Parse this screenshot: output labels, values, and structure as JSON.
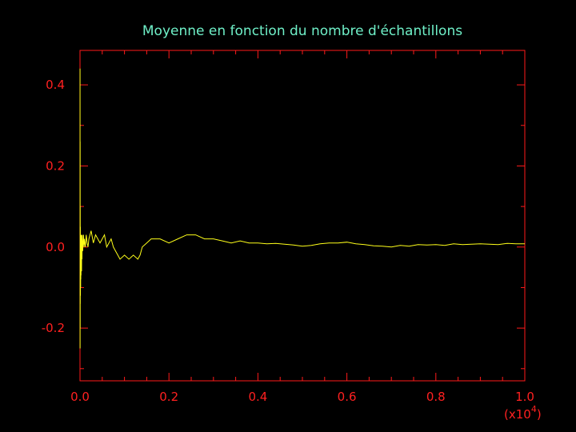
{
  "colors": {
    "background": "#000000",
    "axes": "#ff1a1a",
    "tick_labels": "#ff2020",
    "title": "#6ff0c8",
    "series": "#ffff1a"
  },
  "chart_data": {
    "type": "line",
    "title": "Moyenne en fonction du nombre d'échantillons",
    "xlabel": "",
    "ylabel": "",
    "x_multiplier_label": "(x10",
    "x_multiplier_exponent": "4",
    "x_multiplier_close": ")",
    "xlim": [
      0.0,
      1.0
    ],
    "ylim": [
      -0.33,
      0.485
    ],
    "x_tick_labels": [
      "0.0",
      "0.2",
      "0.4",
      "0.6",
      "0.8",
      "1.0"
    ],
    "y_tick_labels": [
      "-0.2",
      "0.0",
      "0.2",
      "0.4"
    ],
    "grid": false,
    "legend": "none",
    "series": [
      {
        "x": [
          0.0001,
          0.0002,
          0.0003,
          0.0004,
          0.0005,
          0.0006,
          0.0008,
          0.001,
          0.0012,
          0.0014,
          0.0016,
          0.0018,
          0.002,
          0.0023,
          0.0026,
          0.003,
          0.0035,
          0.004,
          0.0045,
          0.005,
          0.006,
          0.007,
          0.008,
          0.009,
          0.01,
          0.012,
          0.014,
          0.016,
          0.018,
          0.02,
          0.025,
          0.03,
          0.035,
          0.04,
          0.045,
          0.05,
          0.055,
          0.06,
          0.065,
          0.07,
          0.075,
          0.08,
          0.085,
          0.09,
          0.1,
          0.11,
          0.12,
          0.13,
          0.135,
          0.14,
          0.15,
          0.16,
          0.18,
          0.2,
          0.22,
          0.24,
          0.26,
          0.28,
          0.3,
          0.32,
          0.34,
          0.36,
          0.38,
          0.4,
          0.42,
          0.44,
          0.46,
          0.48,
          0.5,
          0.52,
          0.54,
          0.56,
          0.58,
          0.6,
          0.62,
          0.64,
          0.66,
          0.68,
          0.7,
          0.72,
          0.74,
          0.76,
          0.78,
          0.8,
          0.82,
          0.84,
          0.86,
          0.88,
          0.9,
          0.92,
          0.94,
          0.96,
          0.98,
          1.0
        ],
        "y": [
          0.44,
          -0.25,
          0.26,
          -0.2,
          0.1,
          -0.14,
          0.05,
          -0.12,
          0.02,
          -0.1,
          0.0,
          -0.08,
          0.03,
          -0.07,
          0.02,
          -0.02,
          -0.06,
          0.03,
          -0.03,
          0.03,
          -0.01,
          0.01,
          0.03,
          0.0,
          0.02,
          0.0,
          0.03,
          0.01,
          0.0,
          0.02,
          0.04,
          0.01,
          0.03,
          0.02,
          0.01,
          0.02,
          0.03,
          0.0,
          0.01,
          0.02,
          0.0,
          -0.01,
          -0.02,
          -0.03,
          -0.02,
          -0.03,
          -0.02,
          -0.03,
          -0.02,
          0.0,
          0.01,
          0.02,
          0.02,
          0.01,
          0.02,
          0.03,
          0.03,
          0.02,
          0.02,
          0.015,
          0.01,
          0.015,
          0.01,
          0.01,
          0.008,
          0.009,
          0.007,
          0.005,
          0.002,
          0.004,
          0.008,
          0.01,
          0.01,
          0.012,
          0.008,
          0.006,
          0.003,
          0.002,
          0.0,
          0.004,
          0.002,
          0.006,
          0.005,
          0.006,
          0.004,
          0.008,
          0.006,
          0.007,
          0.008,
          0.007,
          0.006,
          0.009,
          0.008,
          0.008
        ]
      }
    ]
  }
}
